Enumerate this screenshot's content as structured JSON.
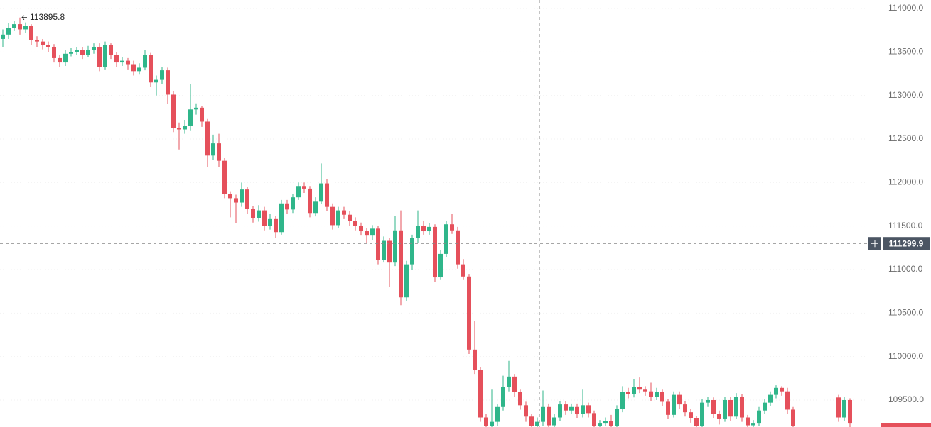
{
  "chart_data": {
    "type": "candlestick",
    "up_color": "#2fb68a",
    "down_color": "#e5505b",
    "ylim": [
      109190,
      114098
    ],
    "yticks": [
      {
        "value": 109500,
        "label": "109500.0"
      },
      {
        "value": 110000,
        "label": "110000.0"
      },
      {
        "value": 110500,
        "label": "110500.0"
      },
      {
        "value": 111000,
        "label": "111000.0"
      },
      {
        "value": 111500,
        "label": "111500.0"
      },
      {
        "value": 112000,
        "label": "112000.0"
      },
      {
        "value": 112500,
        "label": "112500.0"
      },
      {
        "value": 113000,
        "label": "113000.0"
      },
      {
        "value": 113500,
        "label": "113500.0"
      },
      {
        "value": 114000,
        "label": "114000.0"
      }
    ],
    "grid": true,
    "high_marker": 113895.8,
    "crosshair_price": 111299.9,
    "open": [
      113650,
      113700,
      113780,
      113820,
      113760,
      113800,
      113640,
      113620,
      113580,
      113560,
      113430,
      113380,
      113480,
      113500,
      113520,
      113470,
      113520,
      113560,
      113330,
      113580,
      113470,
      113380,
      113400,
      113360,
      113280,
      113320,
      113470,
      113150,
      113180,
      113290,
      113010,
      112630,
      112610,
      112650,
      112840,
      112860,
      112700,
      112310,
      112450,
      112250,
      111870,
      111820,
      111770,
      111920,
      111700,
      111590,
      111680,
      111500,
      111580,
      111430,
      111760,
      111690,
      111830,
      111960,
      111930,
      111650,
      111780,
      111990,
      111720,
      111510,
      111680,
      111630,
      111560,
      111500,
      111440,
      111390,
      111470,
      111110,
      111330,
      111080,
      111450,
      110680,
      111060,
      111360,
      111500,
      111440,
      111490,
      110910,
      111180,
      111520,
      111450,
      111060,
      110920,
      110080,
      109850,
      109300,
      109200,
      109250,
      109420,
      109650,
      109770,
      109590,
      109440,
      109310,
      109200,
      109250,
      109420,
      109210,
      109300,
      109450,
      109380,
      109420,
      109340,
      109440,
      109350,
      109200,
      109230,
      109260,
      109200,
      109400,
      109590,
      109570,
      109650,
      109620,
      109600,
      109540,
      109590,
      109480,
      109330,
      109560,
      109450,
      109360,
      109290,
      109200,
      109470,
      109500,
      109340,
      109280,
      109500,
      109310,
      109540,
      109300,
      109210,
      109230,
      109380,
      109470,
      109560,
      109640,
      109600,
      109390,
      null,
      null,
      null,
      null,
      null,
      null,
      null,
      109530,
      109300,
      109500
    ],
    "high": [
      113760,
      113830,
      113860,
      113895.8,
      113840,
      113820,
      113680,
      113650,
      113620,
      113590,
      113470,
      113520,
      113550,
      113560,
      113560,
      113570,
      113600,
      113600,
      113620,
      113600,
      113500,
      113440,
      113430,
      113400,
      113370,
      113520,
      113490,
      113230,
      113330,
      113320,
      113050,
      112690,
      112720,
      113130,
      112910,
      112880,
      112730,
      112550,
      112560,
      112280,
      111900,
      111860,
      112000,
      111950,
      111730,
      111740,
      111720,
      111640,
      111620,
      111800,
      111800,
      111870,
      112000,
      112000,
      111960,
      111830,
      112220,
      112040,
      111760,
      111720,
      111720,
      111670,
      111600,
      111540,
      111480,
      111510,
      111500,
      111380,
      111360,
      111620,
      111680,
      111100,
      111400,
      111680,
      111560,
      111530,
      111520,
      111220,
      111560,
      111640,
      111490,
      111120,
      110950,
      110410,
      109880,
      109340,
      109620,
      109450,
      109780,
      109950,
      109800,
      109620,
      109480,
      109340,
      109300,
      109610,
      109460,
      109340,
      109490,
      109490,
      109460,
      109460,
      109620,
      109470,
      109380,
      109270,
      109300,
      109330,
      109440,
      109660,
      109640,
      109740,
      109760,
      109660,
      109700,
      109640,
      109620,
      109510,
      109600,
      109600,
      109490,
      109400,
      109320,
      109510,
      109540,
      109530,
      109380,
      109540,
      109540,
      109580,
      109570,
      109330,
      109270,
      109420,
      109510,
      109600,
      109670,
      109660,
      109640,
      109420,
      null,
      null,
      null,
      null,
      null,
      null,
      null,
      109560,
      109540,
      109520
    ],
    "low": [
      113560,
      113650,
      113740,
      113700,
      113720,
      113580,
      113560,
      113530,
      113500,
      113380,
      113330,
      113340,
      113450,
      113470,
      113420,
      113440,
      113480,
      113280,
      113300,
      113420,
      113330,
      113340,
      113300,
      113230,
      113240,
      113290,
      113100,
      113000,
      113130,
      112900,
      112580,
      112380,
      112560,
      112600,
      112780,
      112640,
      112180,
      112260,
      112180,
      111820,
      111600,
      111530,
      111720,
      111640,
      111540,
      111550,
      111450,
      111460,
      111360,
      111400,
      111640,
      111650,
      111800,
      111880,
      111600,
      111610,
      111750,
      111670,
      111460,
      111480,
      111580,
      111500,
      111450,
      111390,
      111300,
      111340,
      111060,
      111080,
      110800,
      111040,
      110590,
      110640,
      111000,
      111310,
      111400,
      111400,
      110860,
      110880,
      111140,
      111410,
      111010,
      110880,
      110030,
      109800,
      109250,
      109190,
      109190,
      109200,
      109380,
      109600,
      109540,
      109390,
      109250,
      109190,
      109190,
      109200,
      109190,
      109190,
      109260,
      109330,
      109340,
      109290,
      109300,
      109300,
      109190,
      109190,
      109200,
      109190,
      109190,
      109360,
      109520,
      109530,
      109580,
      109550,
      109490,
      109500,
      109430,
      109280,
      109300,
      109400,
      109310,
      109240,
      109190,
      109190,
      109420,
      109290,
      109220,
      109250,
      109260,
      109280,
      109250,
      109190,
      109190,
      109200,
      109340,
      109430,
      109520,
      109550,
      109340,
      109190,
      null,
      null,
      null,
      null,
      null,
      null,
      null,
      109250,
      109260,
      109190
    ],
    "close": [
      113700,
      113780,
      113820,
      113760,
      113800,
      113640,
      113620,
      113580,
      113560,
      113430,
      113380,
      113480,
      113500,
      113520,
      113470,
      113520,
      113560,
      113330,
      113580,
      113470,
      113380,
      113400,
      113360,
      113280,
      113320,
      113470,
      113150,
      113180,
      113290,
      113010,
      112630,
      112610,
      112650,
      112840,
      112860,
      112700,
      112310,
      112450,
      112250,
      111870,
      111820,
      111770,
      111920,
      111700,
      111590,
      111680,
      111500,
      111580,
      111430,
      111760,
      111690,
      111830,
      111960,
      111930,
      111650,
      111780,
      111990,
      111720,
      111510,
      111680,
      111630,
      111560,
      111500,
      111440,
      111390,
      111470,
      111110,
      111330,
      111080,
      111450,
      110680,
      111060,
      111360,
      111500,
      111440,
      111490,
      110910,
      111180,
      111520,
      111450,
      111060,
      110920,
      110080,
      109850,
      109300,
      109200,
      109250,
      109420,
      109650,
      109770,
      109590,
      109440,
      109310,
      109200,
      109250,
      109420,
      109210,
      109300,
      109450,
      109380,
      109420,
      109340,
      109440,
      109350,
      109200,
      109230,
      109260,
      109200,
      109400,
      109590,
      109570,
      109650,
      109620,
      109600,
      109540,
      109590,
      109480,
      109330,
      109560,
      109450,
      109360,
      109290,
      109200,
      109470,
      109500,
      109340,
      109280,
      109500,
      109310,
      109540,
      109300,
      109210,
      109230,
      109380,
      109470,
      109560,
      109640,
      109600,
      109390,
      109200,
      null,
      null,
      null,
      null,
      null,
      null,
      null,
      109300,
      109500,
      109230
    ]
  }
}
